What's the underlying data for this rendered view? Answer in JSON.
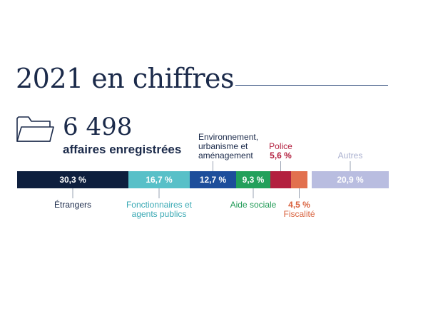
{
  "header": {
    "title": "2021 en chiffres"
  },
  "summary": {
    "total": "6 498",
    "label": "affaires enregistrées"
  },
  "colors": {
    "text": "#1b2a4a",
    "rule": "#2d4a7a",
    "leader": "#9aa3b3"
  },
  "icons": {
    "folder": "folder-icon"
  },
  "chart_data": {
    "type": "bar",
    "orientation": "horizontal-stacked",
    "unit": "%",
    "segments": [
      {
        "category": "Étrangers",
        "value": 30.3,
        "value_label": "30,3 %",
        "color": "#0e1f3e",
        "label_position": "below",
        "label_lines": [
          "Étrangers"
        ],
        "label_color": "#1b2a4a"
      },
      {
        "category": "Fonctionnaires et agents publics",
        "value": 16.7,
        "value_label": "16,7 %",
        "color": "#58c0c8",
        "label_position": "below",
        "label_lines": [
          "Fonctionnaires et",
          "agents publics"
        ],
        "label_color": "#3aa9b4"
      },
      {
        "category": "Environnement, urbanisme et aménagement",
        "value": 12.7,
        "value_label": "12,7 %",
        "color": "#1d4e9b",
        "label_position": "above",
        "label_lines": [
          "Environnement,",
          "urbanisme et",
          "aménagement"
        ],
        "label_color": "#1b2a4a"
      },
      {
        "category": "Aide sociale",
        "value": 9.3,
        "value_label": "9,3 %",
        "color": "#22a05b",
        "label_position": "below",
        "label_lines": [
          "Aide sociale"
        ],
        "label_color": "#1f9a55"
      },
      {
        "category": "Police",
        "value": 5.6,
        "value_label": "5,6 %",
        "color": "#b3203f",
        "label_position": "above",
        "label_lines": [
          "Police"
        ],
        "label_color": "#b3203f",
        "value_outside": "above"
      },
      {
        "category": "Fiscalité",
        "value": 4.5,
        "value_label": "4,5 %",
        "color": "#e2704e",
        "label_position": "below",
        "label_lines": [
          "Fiscalité"
        ],
        "label_color": "#d9633f",
        "value_outside": "below"
      },
      {
        "category": "Autres",
        "value": 20.9,
        "value_label": "20,9 %",
        "color": "#b9bde0",
        "label_position": "above",
        "label_lines": [
          "Autres"
        ],
        "label_color": "#aab0cf"
      }
    ]
  }
}
